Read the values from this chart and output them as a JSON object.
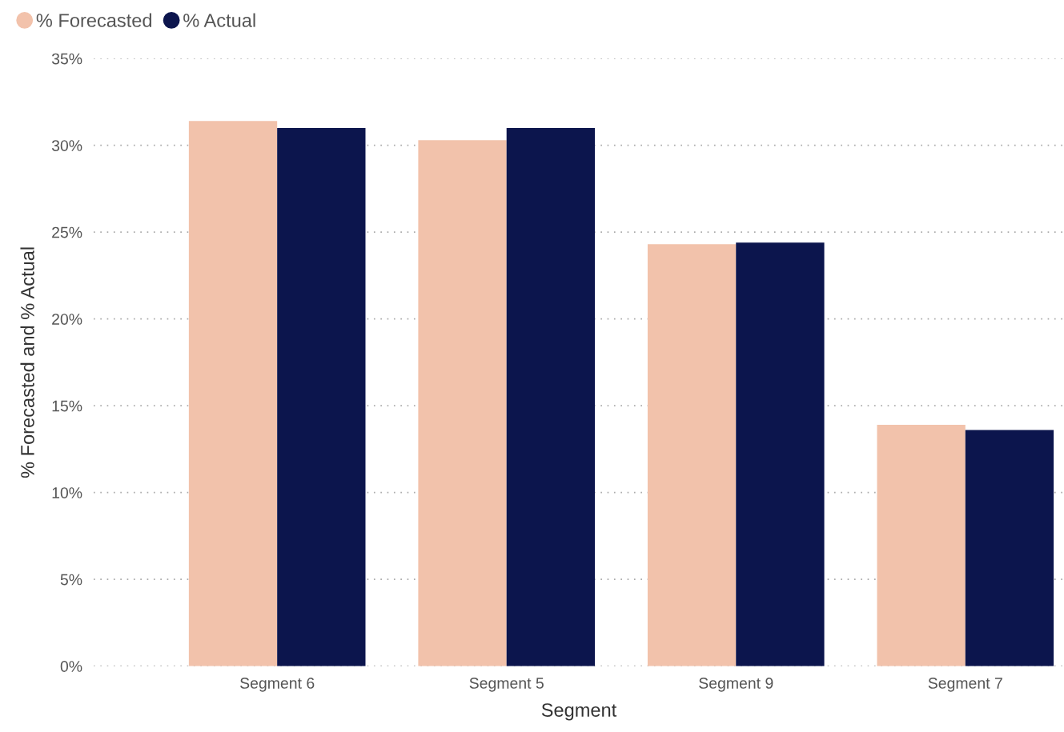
{
  "chart_data": {
    "type": "bar",
    "xlabel": "Segment",
    "ylabel": "% Forecasted and % Actual",
    "categories": [
      "Segment 6",
      "Segment 5",
      "Segment 9",
      "Segment 7"
    ],
    "series": [
      {
        "name": "% Forecasted",
        "color": "#f2c2ab",
        "values": [
          31.4,
          30.3,
          24.3,
          13.9
        ]
      },
      {
        "name": "% Actual",
        "color": "#0c154d",
        "values": [
          31.0,
          31.0,
          24.4,
          13.6
        ]
      }
    ],
    "ylim": [
      0,
      35
    ],
    "yticks": [
      {
        "value": 0,
        "label": "0%"
      },
      {
        "value": 5,
        "label": "5%"
      },
      {
        "value": 10,
        "label": "10%"
      },
      {
        "value": 15,
        "label": "15%"
      },
      {
        "value": 20,
        "label": "20%"
      },
      {
        "value": 25,
        "label": "25%"
      },
      {
        "value": 30,
        "label": "30%"
      },
      {
        "value": 35,
        "label": "35%"
      }
    ],
    "grid": "y",
    "legend": "top left"
  }
}
